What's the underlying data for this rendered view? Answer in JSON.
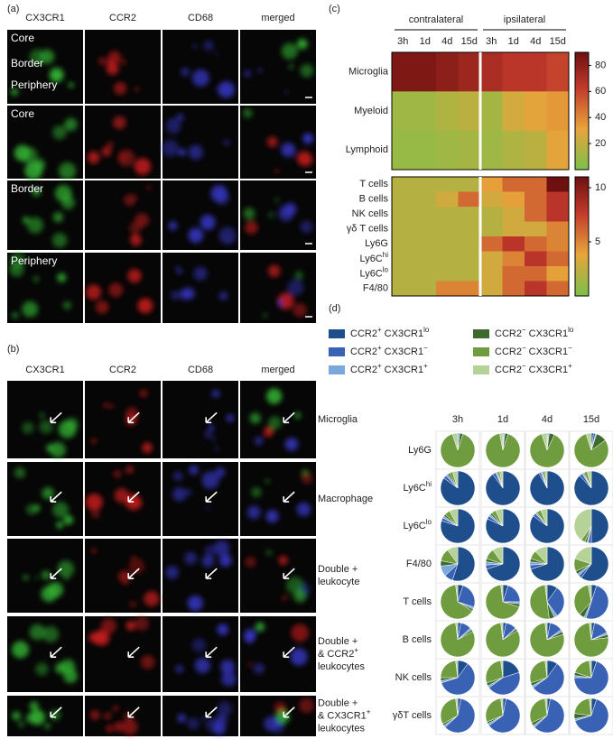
{
  "panel_a": {
    "label": "(a)",
    "columns": [
      "CX3CR1",
      "CCR2",
      "CD68",
      "merged"
    ],
    "regions": [
      [
        "Core",
        "Border",
        "Periphery"
      ],
      [
        "Core"
      ],
      [
        "Border"
      ],
      [
        "Periphery"
      ]
    ]
  },
  "panel_b": {
    "label": "(b)",
    "columns": [
      "CX3CR1",
      "CCR2",
      "CD68",
      "merged"
    ],
    "rows": [
      [
        "Microglia"
      ],
      [
        "Macrophage"
      ],
      [
        "Double +",
        "leukocyte"
      ],
      [
        "Double +",
        [
          "& CCR2",
          "+"
        ],
        "leukocytes"
      ],
      [
        "Double +",
        [
          "& CX3CR1",
          "+"
        ],
        "leukocytes"
      ]
    ]
  },
  "panel_c": {
    "label": "(c)",
    "groups": [
      "contralateral",
      "ipsilateral"
    ],
    "times": [
      "3h",
      "1d",
      "4d",
      "15d",
      "3h",
      "1d",
      "4d",
      "15d"
    ],
    "top": {
      "rows": [
        "Microglia",
        "Myeloid",
        "Lymphoid"
      ],
      "values": [
        [
          85,
          85,
          80,
          75,
          70,
          65,
          65,
          60
        ],
        [
          10,
          10,
          15,
          18,
          12,
          25,
          30,
          35
        ],
        [
          8,
          8,
          10,
          12,
          10,
          15,
          18,
          30
        ]
      ],
      "lim": [
        0,
        90
      ],
      "ticks": [
        20,
        40,
        60,
        80
      ]
    },
    "bottom": {
      "rows": [
        "T cells",
        "B cells",
        "NK cells",
        "γδ T cells",
        "Ly6G",
        [
          "Ly6C",
          "hi"
        ],
        [
          "Ly6C",
          "lo"
        ],
        "F4/80"
      ],
      "values": [
        [
          2,
          2,
          2,
          2,
          4,
          6,
          6,
          11
        ],
        [
          2,
          2,
          3,
          6,
          3,
          4,
          6,
          8
        ],
        [
          2,
          2,
          2,
          2,
          2,
          3,
          6,
          8
        ],
        [
          2,
          2,
          2,
          2,
          2,
          3,
          3,
          5
        ],
        [
          2,
          2,
          2,
          2,
          6,
          8,
          6,
          5
        ],
        [
          2,
          2,
          2,
          2,
          3,
          5,
          8,
          6
        ],
        [
          2,
          2,
          2,
          2,
          3,
          6,
          6,
          4
        ],
        [
          2,
          2,
          5,
          5,
          3,
          6,
          8,
          6
        ]
      ],
      "lim": [
        0,
        11
      ],
      "ticks": [
        5,
        10
      ]
    }
  },
  "panel_d": {
    "label": "(d)",
    "legend": [
      {
        "label": [
          "CCR2",
          "+",
          " CX3CR1",
          "lo"
        ],
        "color": "#1f4e8c"
      },
      {
        "label": [
          "CCR2",
          "+",
          " CX3CR1",
          "−"
        ],
        "color": "#3a62b4"
      },
      {
        "label": [
          "CCR2",
          "+",
          " CX3CR1",
          "+"
        ],
        "color": "#7aa7dc"
      },
      {
        "label": [
          "CCR2",
          "−",
          " CX3CR1",
          "lo"
        ],
        "color": "#3f6a2e"
      },
      {
        "label": [
          "CCR2",
          "−",
          " CX3CR1",
          "−"
        ],
        "color": "#6e9c3e"
      },
      {
        "label": [
          "CCR2",
          "−",
          " CX3CR1",
          "+"
        ],
        "color": "#b5d398"
      }
    ],
    "times": [
      "3h",
      "1d",
      "4d",
      "15d"
    ],
    "rows": [
      {
        "label": "Ly6G",
        "pies": [
          [
            0,
            0,
            2,
            3,
            90,
            5
          ],
          [
            0,
            1,
            1,
            3,
            92,
            3
          ],
          [
            0,
            1,
            1,
            5,
            88,
            5
          ],
          [
            2,
            2,
            1,
            10,
            80,
            5
          ]
        ]
      },
      {
        "label": [
          "Ly6C",
          "hi"
        ],
        "pies": [
          [
            85,
            3,
            2,
            2,
            3,
            5
          ],
          [
            90,
            3,
            1,
            1,
            2,
            3
          ],
          [
            92,
            2,
            1,
            1,
            2,
            2
          ],
          [
            88,
            3,
            1,
            1,
            3,
            4
          ]
        ]
      },
      {
        "label": [
          "Ly6C",
          "lo"
        ],
        "pies": [
          [
            80,
            3,
            2,
            2,
            5,
            8
          ],
          [
            82,
            3,
            2,
            2,
            4,
            7
          ],
          [
            85,
            3,
            1,
            1,
            4,
            6
          ],
          [
            50,
            3,
            1,
            2,
            4,
            40
          ]
        ]
      },
      {
        "label": "F4/80",
        "pies": [
          [
            55,
            8,
            10,
            5,
            12,
            10
          ],
          [
            70,
            4,
            3,
            3,
            10,
            10
          ],
          [
            70,
            4,
            3,
            3,
            8,
            12
          ],
          [
            60,
            3,
            2,
            3,
            12,
            20
          ]
        ]
      },
      {
        "label": "T cells",
        "pies": [
          [
            5,
            25,
            2,
            2,
            64,
            2
          ],
          [
            5,
            20,
            2,
            3,
            68,
            2
          ],
          [
            10,
            30,
            3,
            5,
            50,
            2
          ],
          [
            5,
            50,
            2,
            5,
            35,
            3
          ]
        ]
      },
      {
        "label": "B cells",
        "pies": [
          [
            3,
            10,
            2,
            2,
            81,
            2
          ],
          [
            3,
            10,
            1,
            2,
            82,
            2
          ],
          [
            3,
            12,
            2,
            3,
            78,
            2
          ],
          [
            3,
            15,
            2,
            3,
            75,
            2
          ]
        ]
      },
      {
        "label": "NK cells",
        "pies": [
          [
            10,
            60,
            2,
            3,
            23,
            2
          ],
          [
            20,
            45,
            2,
            3,
            28,
            2
          ],
          [
            10,
            55,
            2,
            3,
            28,
            2
          ],
          [
            5,
            70,
            2,
            3,
            18,
            2
          ]
        ]
      },
      {
        "label": "γδT cells",
        "pies": [
          [
            3,
            60,
            2,
            2,
            31,
            2
          ],
          [
            3,
            62,
            2,
            2,
            29,
            2
          ],
          [
            3,
            60,
            2,
            3,
            30,
            2
          ],
          [
            5,
            65,
            2,
            5,
            21,
            2
          ]
        ]
      }
    ]
  }
}
